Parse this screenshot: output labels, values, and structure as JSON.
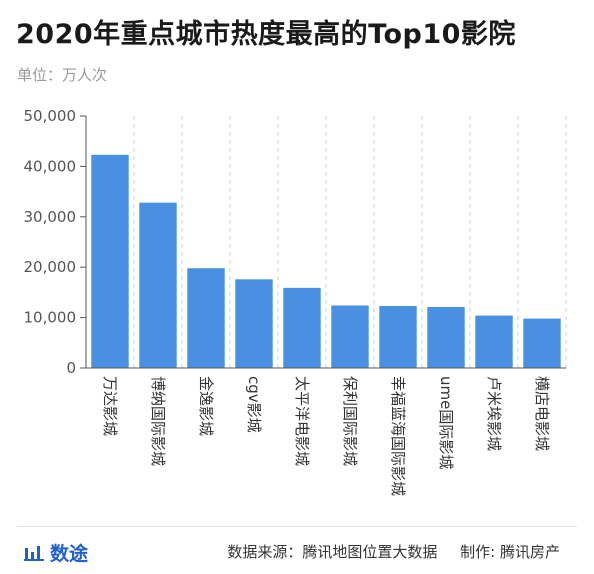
{
  "title": "2020年重点城市热度最高的Top10影院",
  "unit": "单位：万人次",
  "footer": {
    "brand": "数途",
    "brand_icon": "bar-chart-logo-icon",
    "source": "数据来源：腾讯地图位置大数据",
    "producer": "制作: 腾讯房产"
  },
  "colors": {
    "bar": "#4a90e2",
    "grid": "#cccccc",
    "axis": "#555555",
    "brand": "#1f5fd1"
  },
  "chart_data": {
    "type": "bar",
    "title": "2020年重点城市热度最高的Top10影院",
    "xlabel": "",
    "ylabel": "单位：万人次",
    "categories": [
      "万达影城",
      "博纳国际影城",
      "金逸影城",
      "cgv影城",
      "太平洋电影城",
      "保利国际影城",
      "幸福蓝海国际影城",
      "ume国际影城",
      "卢米埃影城",
      "横店电影城"
    ],
    "values": [
      42300,
      32800,
      19800,
      17600,
      15900,
      12400,
      12300,
      12100,
      10400,
      9800
    ],
    "ylim": [
      0,
      50000
    ],
    "yticks": [
      "0",
      "10,000",
      "20,000",
      "30,000",
      "40,000",
      "50,000"
    ],
    "ytick_values": [
      0,
      10000,
      20000,
      30000,
      40000,
      50000
    ],
    "grid": "vertical dashed between categories",
    "legend": "none"
  }
}
